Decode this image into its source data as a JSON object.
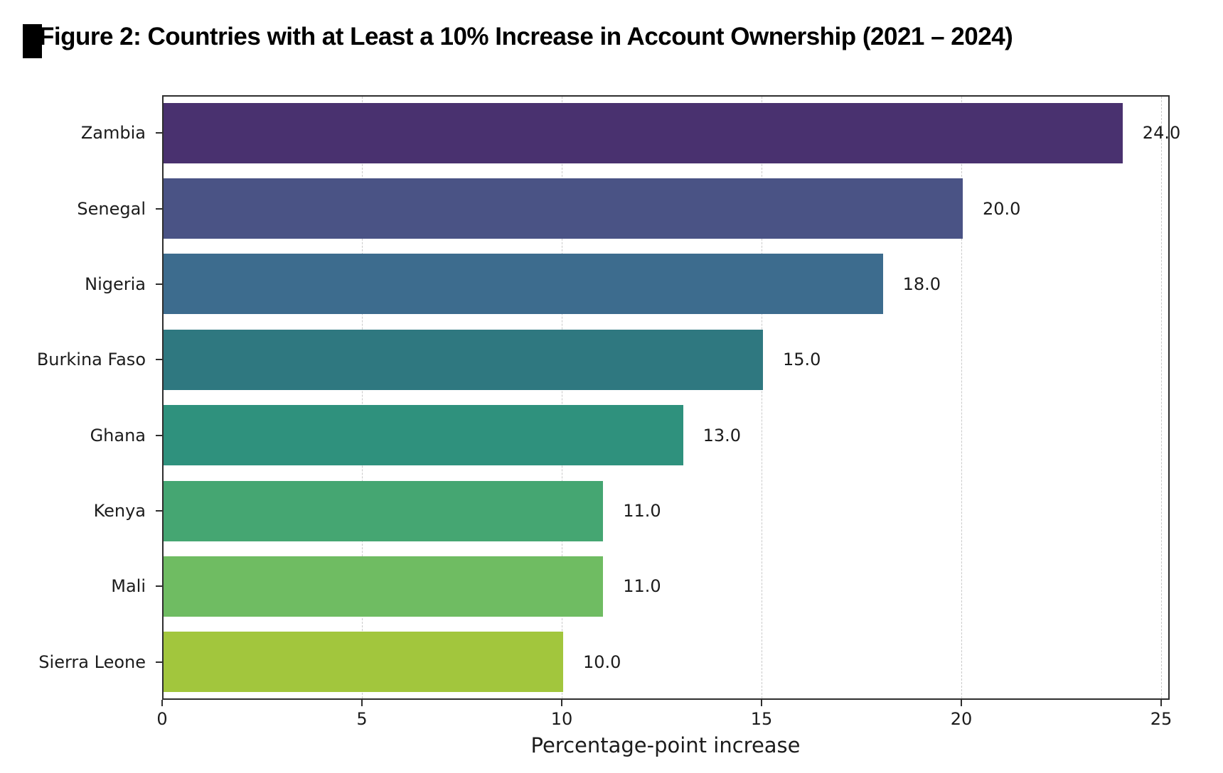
{
  "page": {
    "background_color": "#ffffff",
    "artifact_color": "#000000"
  },
  "chart_data": {
    "type": "bar",
    "orientation": "horizontal",
    "title": "Figure 2: Countries with at Least a 10% Increase in Account Ownership (2021 – 2024)",
    "categories": [
      "Zambia",
      "Senegal",
      "Nigeria",
      "Burkina Faso",
      "Ghana",
      "Kenya",
      "Mali",
      "Sierra Leone"
    ],
    "values": [
      24.0,
      20.0,
      18.0,
      15.0,
      13.0,
      11.0,
      11.0,
      10.0
    ],
    "value_labels": [
      "24.0",
      "20.0",
      "18.0",
      "15.0",
      "13.0",
      "11.0",
      "11.0",
      "10.0"
    ],
    "bar_colors": [
      "#49316f",
      "#4a5385",
      "#3d6c8e",
      "#2f7880",
      "#2f917d",
      "#45a672",
      "#6fbc62",
      "#a2c63d"
    ],
    "xlabel": "Percentage-point increase",
    "ylabel": "",
    "xlim": [
      0,
      25.2
    ],
    "xticks": [
      0,
      5,
      10,
      15,
      20,
      25
    ],
    "xtick_labels": [
      "0",
      "5",
      "10",
      "15",
      "20",
      "25"
    ],
    "grid": "vertical-dashed",
    "legend": "none"
  },
  "style": {
    "grid_color": "#c9c9c9",
    "spine_color": "#2e2e2e",
    "text_color": "#1c1c1c",
    "title_color": "#000000"
  }
}
